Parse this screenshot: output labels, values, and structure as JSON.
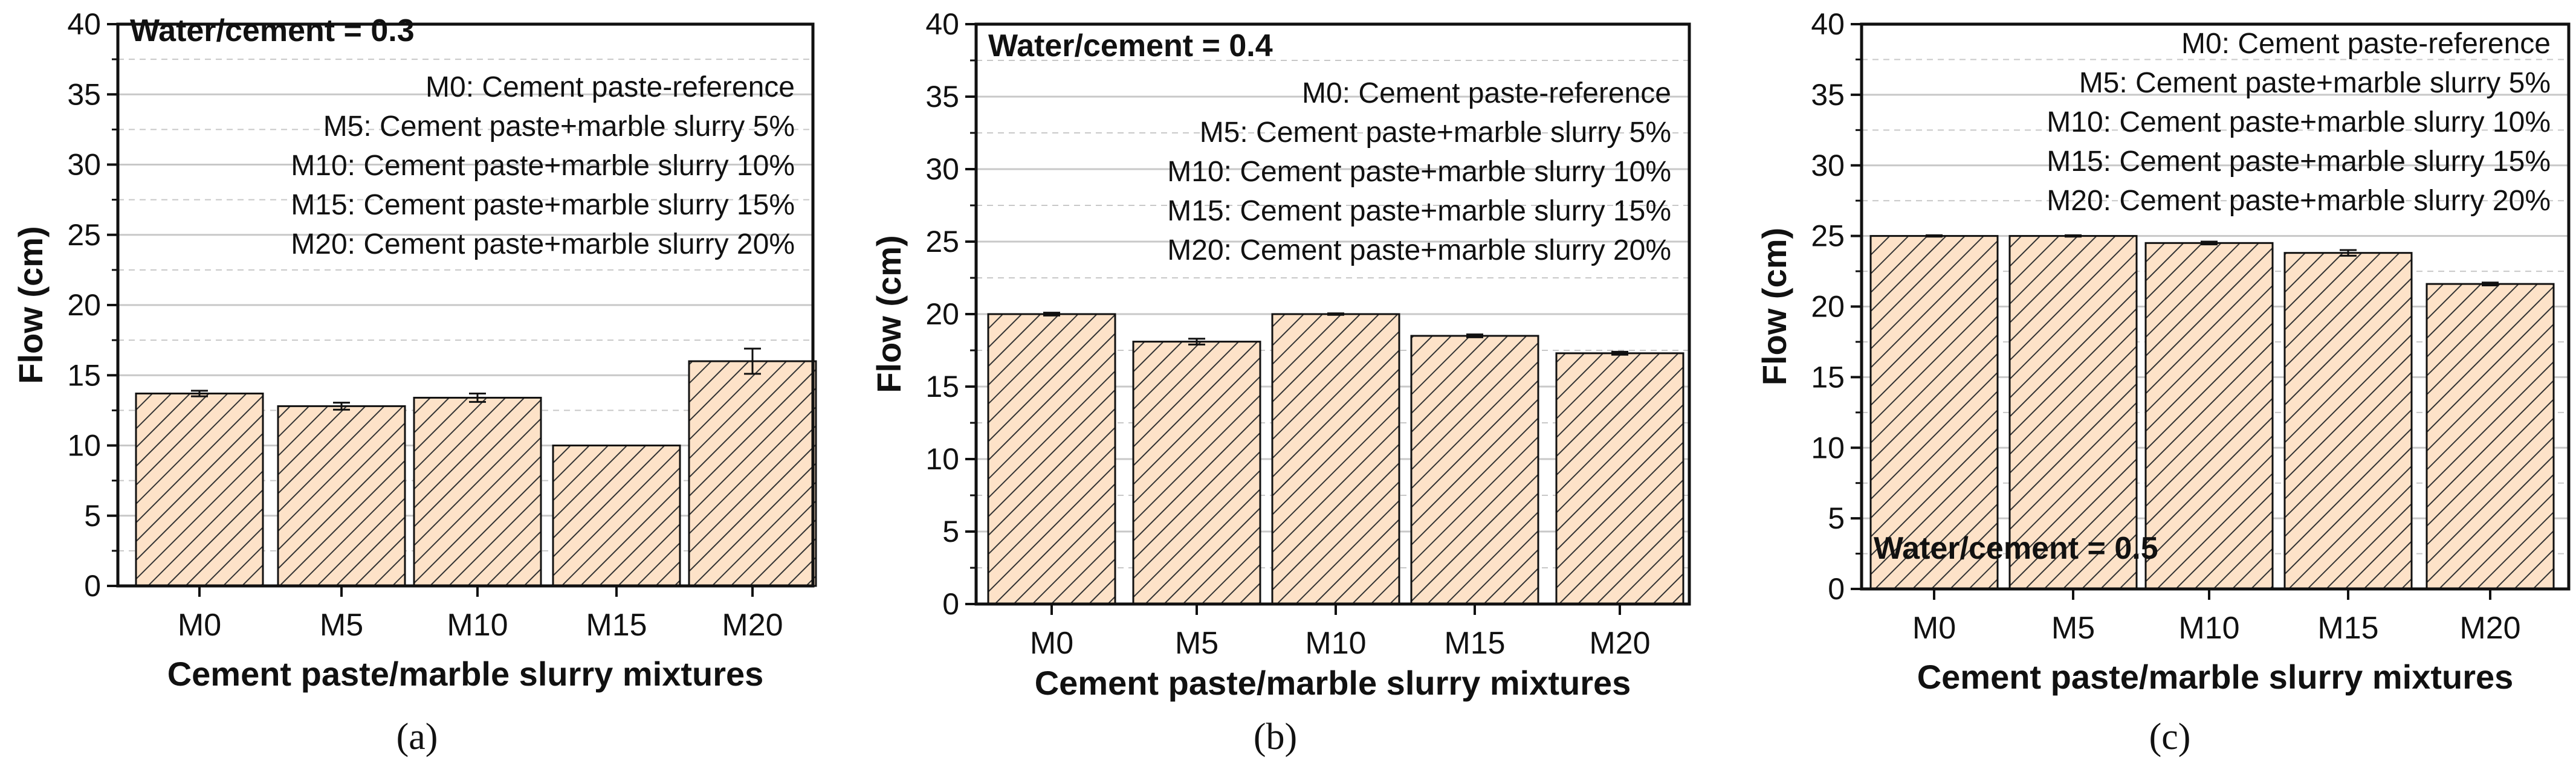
{
  "figure": {
    "hatch_fill": "#fde2c8",
    "hatch_color": "#333333",
    "grid_color": "#c8c8c8"
  },
  "chart_data": [
    {
      "type": "bar",
      "panel_label": "(a)",
      "annotation": "Water/cement = 0.3",
      "annotation_position": "top-left",
      "categories": [
        "M0",
        "M5",
        "M10",
        "M15",
        "M20"
      ],
      "values": [
        13.7,
        12.8,
        13.4,
        10.0,
        16.0
      ],
      "errors": [
        0.2,
        0.25,
        0.3,
        0.0,
        0.9
      ],
      "xlabel": "Cement paste/marble slurry mixtures",
      "ylabel": "Flow (cm)",
      "ylim": [
        0,
        40
      ],
      "yticks": [
        "0",
        "5",
        "10",
        "15",
        "20",
        "25",
        "30",
        "35",
        "40"
      ],
      "grid": true,
      "legend_text": [
        "M0: Cement paste-reference",
        "M5: Cement paste+marble slurry  5%",
        "M10: Cement paste+marble slurry 10%",
        "M15: Cement paste+marble slurry 15%",
        "M20: Cement paste+marble slurry 20%"
      ],
      "legend_position": "top-right"
    },
    {
      "type": "bar",
      "panel_label": "(b)",
      "annotation": "Water/cement = 0.4",
      "annotation_position": "top-left",
      "categories": [
        "M0",
        "M5",
        "M10",
        "M15",
        "M20"
      ],
      "values": [
        20.0,
        18.1,
        20.0,
        18.5,
        17.3
      ],
      "errors": [
        0.1,
        0.2,
        0.05,
        0.1,
        0.1
      ],
      "xlabel": "Cement paste/marble slurry mixtures",
      "ylabel": "Flow (cm)",
      "ylim": [
        0,
        40
      ],
      "yticks": [
        "0",
        "5",
        "10",
        "15",
        "20",
        "25",
        "30",
        "35",
        "40"
      ],
      "grid": true,
      "legend_text": [
        "M0: Cement paste-reference",
        "M5: Cement paste+marble slurry  5%",
        "M10: Cement paste+marble slurry 10%",
        "M15: Cement paste+marble slurry 15%",
        "M20: Cement paste+marble slurry 20%"
      ],
      "legend_position": "top-right"
    },
    {
      "type": "bar",
      "panel_label": "(c)",
      "annotation": "Water/cement = 0.5",
      "annotation_position": "bottom-left",
      "categories": [
        "M0",
        "M5",
        "M10",
        "M15",
        "M20"
      ],
      "values": [
        25.0,
        25.0,
        24.5,
        23.8,
        21.6
      ],
      "errors": [
        0.05,
        0.05,
        0.1,
        0.2,
        0.1
      ],
      "xlabel": "Cement paste/marble slurry mixtures",
      "ylabel": "Flow (cm)",
      "ylim": [
        0,
        40
      ],
      "yticks": [
        "0",
        "5",
        "10",
        "15",
        "20",
        "25",
        "30",
        "35",
        "40"
      ],
      "grid": true,
      "legend_text": [
        "M0: Cement paste-reference",
        "M5: Cement paste+marble slurry  5%",
        "M10: Cement paste+marble slurry 10%",
        "M15: Cement paste+marble slurry 15%",
        "M20: Cement paste+marble slurry 20%"
      ],
      "legend_position": "top-right"
    }
  ]
}
